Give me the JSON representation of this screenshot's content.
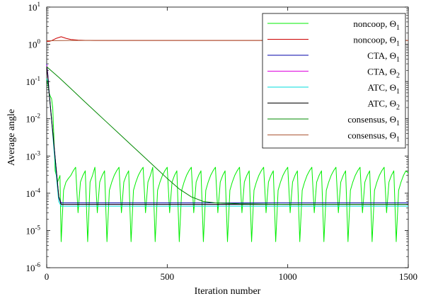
{
  "chart_data": {
    "type": "line",
    "xlabel": "Iteration number",
    "ylabel": "Average angle",
    "xlim": [
      0,
      1500
    ],
    "ylim": [
      1e-06,
      10
    ],
    "yscale": "log",
    "x_ticks": [
      "0",
      "500",
      "1000",
      "1500"
    ],
    "y_ticks": [
      {
        "base": "10",
        "exp": "-6",
        "value": 1e-06
      },
      {
        "base": "10",
        "exp": "-5",
        "value": 1e-05
      },
      {
        "base": "10",
        "exp": "-4",
        "value": 0.0001
      },
      {
        "base": "10",
        "exp": "-3",
        "value": 0.001
      },
      {
        "base": "10",
        "exp": "-2",
        "value": 0.01
      },
      {
        "base": "10",
        "exp": "-1",
        "value": 0.1
      },
      {
        "base": "10",
        "exp": "0",
        "value": 1
      },
      {
        "base": "10",
        "exp": "1",
        "value": 10
      }
    ],
    "grid": false,
    "legend_position": "top-right",
    "series": [
      {
        "name": "noncoop, Θ₁",
        "label": "noncoop, ",
        "sym": "Θ",
        "sub": "1",
        "color": "#00ee00",
        "x": [
          0,
          5,
          10,
          15,
          20,
          25,
          30,
          35,
          40,
          45,
          55,
          60,
          70,
          80,
          90,
          100,
          110,
          120,
          130,
          140,
          150,
          160,
          170,
          180,
          190,
          200,
          210,
          220,
          230,
          240,
          250,
          260,
          270,
          280,
          290,
          300,
          310,
          320,
          330,
          340,
          350,
          360,
          370,
          380,
          390,
          400,
          410,
          420,
          430,
          440,
          450,
          460,
          470,
          480,
          490,
          500,
          510,
          520,
          530,
          540,
          550,
          560,
          570,
          580,
          590,
          600,
          610,
          620,
          630,
          640,
          650,
          660,
          670,
          680,
          690,
          700,
          710,
          720,
          730,
          740,
          750,
          760,
          770,
          780,
          790,
          800,
          810,
          820,
          830,
          840,
          850,
          860,
          870,
          880,
          890,
          900,
          910,
          920,
          930,
          940,
          950,
          960,
          970,
          980,
          990,
          1000,
          1010,
          1020,
          1030,
          1040,
          1050,
          1060,
          1070,
          1080,
          1090,
          1100,
          1110,
          1120,
          1130,
          1140,
          1150,
          1160,
          1170,
          1180,
          1190,
          1200,
          1210,
          1220,
          1230,
          1240,
          1250,
          1260,
          1270,
          1280,
          1290,
          1300,
          1310,
          1320,
          1330,
          1340,
          1350,
          1360,
          1370,
          1380,
          1390,
          1400,
          1410,
          1420,
          1430,
          1440,
          1450,
          1460,
          1470,
          1480,
          1490,
          1500
        ],
        "y": [
          0.12,
          0.08,
          0.05,
          0.04,
          0.035,
          0.02,
          0.003,
          0.0004,
          0.0003,
          0.0002,
          0.0003,
          5e-06,
          0.00012,
          0.0002,
          0.00025,
          0.0003,
          0.0004,
          0.0005,
          3e-05,
          0.0002,
          0.0003,
          0.0004,
          5e-06,
          0.0002,
          0.0003,
          0.0005,
          3e-05,
          0.0002,
          0.0003,
          0.0004,
          5e-06,
          0.00012,
          0.0002,
          0.0003,
          0.0004,
          0.0005,
          3e-05,
          0.0002,
          0.0003,
          0.0004,
          5e-06,
          0.00012,
          0.0002,
          0.0003,
          0.0004,
          0.0005,
          3e-05,
          0.0002,
          0.0003,
          0.0005,
          5e-06,
          0.00012,
          0.0002,
          0.0003,
          0.0004,
          0.0005,
          3e-05,
          0.0002,
          0.0003,
          0.0004,
          5e-06,
          0.00012,
          0.0002,
          0.0003,
          0.0004,
          0.0005,
          3e-05,
          0.0002,
          0.0003,
          0.0004,
          5e-06,
          0.00012,
          0.0002,
          0.0003,
          0.0004,
          0.0005,
          3e-05,
          0.0002,
          0.0003,
          0.0004,
          5e-06,
          0.00012,
          0.0002,
          0.0003,
          0.0004,
          0.0005,
          3e-05,
          0.0002,
          0.0003,
          0.0004,
          5e-06,
          0.00012,
          0.0002,
          0.0003,
          0.0004,
          0.0005,
          3e-05,
          0.0002,
          0.0003,
          0.0004,
          5e-06,
          0.00012,
          0.0002,
          0.0003,
          0.0004,
          0.0005,
          3e-05,
          0.0002,
          0.0003,
          0.0004,
          5e-06,
          0.00012,
          0.0002,
          0.0003,
          0.0004,
          0.0005,
          3e-05,
          0.0002,
          0.0003,
          0.0004,
          5e-06,
          0.00012,
          0.0002,
          0.0003,
          0.0004,
          0.0005,
          3e-05,
          0.0002,
          0.0003,
          0.0004,
          5e-06,
          0.00012,
          0.0002,
          0.0003,
          0.0004,
          0.0005,
          3e-05,
          0.0002,
          0.0003,
          0.0004,
          5e-06,
          0.00012,
          0.0002,
          0.0003,
          0.0004,
          0.0005,
          3e-05,
          0.0002,
          0.0003,
          0.0004,
          5e-06,
          0.00012,
          0.0002,
          0.0003,
          0.0004,
          0.00035
        ]
      },
      {
        "name": "noncoop, Θ₁",
        "label": "noncoop, ",
        "sym": "Θ",
        "sub": "1",
        "color": "#cc0000",
        "x": [
          0,
          10,
          20,
          40,
          60,
          80,
          100,
          130,
          160,
          200,
          300,
          500,
          1000,
          1500
        ],
        "y": [
          1.2,
          1.2,
          1.25,
          1.45,
          1.6,
          1.45,
          1.35,
          1.3,
          1.28,
          1.27,
          1.27,
          1.27,
          1.27,
          1.27
        ]
      },
      {
        "name": "CTA, Θ₁",
        "label": "CTA, ",
        "sym": "Θ",
        "sub": "1",
        "color": "#0000aa",
        "x": [
          0,
          5,
          10,
          20,
          30,
          40,
          50,
          60,
          80,
          200,
          1500
        ],
        "y": [
          0.3,
          0.15,
          0.05,
          0.01,
          0.002,
          0.0004,
          8e-05,
          5.5e-05,
          5.5e-05,
          5.5e-05,
          5.5e-05
        ]
      },
      {
        "name": "CTA, Θ₂",
        "label": "CTA, ",
        "sym": "Θ",
        "sub": "2",
        "color": "#dd00dd",
        "x": [
          0,
          5,
          10,
          20,
          30,
          40,
          50,
          60,
          80,
          200,
          1500
        ],
        "y": [
          0.28,
          0.14,
          0.05,
          0.01,
          0.002,
          0.0004,
          8e-05,
          5e-05,
          5e-05,
          5e-05,
          5e-05
        ]
      },
      {
        "name": "ATC, Θ₁",
        "label": "ATC, ",
        "sym": "Θ",
        "sub": "1",
        "color": "#00dddd",
        "x": [
          0,
          5,
          10,
          20,
          30,
          40,
          50,
          60,
          80,
          200,
          1500
        ],
        "y": [
          0.12,
          0.1,
          0.05,
          0.01,
          0.0015,
          0.0003,
          6e-05,
          4.5e-05,
          4.5e-05,
          4.5e-05,
          4.5e-05
        ]
      },
      {
        "name": "ATC, Θ₂",
        "label": "ATC, ",
        "sym": "Θ",
        "sub": "2",
        "color": "#000000",
        "x": [
          0,
          5,
          10,
          20,
          30,
          40,
          50,
          60,
          80,
          200,
          1500
        ],
        "y": [
          0.25,
          0.13,
          0.05,
          0.01,
          0.002,
          0.0004,
          8e-05,
          5e-05,
          5e-05,
          5e-05,
          5e-05
        ]
      },
      {
        "name": "consensus, Θ₁",
        "label": "consensus, ",
        "sym": "Θ",
        "sub": "1",
        "color": "#008800",
        "x": [
          0,
          50,
          100,
          150,
          200,
          250,
          300,
          350,
          400,
          450,
          500,
          550,
          600,
          650,
          700,
          800,
          1000,
          1500
        ],
        "y": [
          0.25,
          0.13,
          0.065,
          0.032,
          0.016,
          0.008,
          0.004,
          0.002,
          0.001,
          0.0005,
          0.00025,
          0.00013,
          8e-05,
          6e-05,
          5.5e-05,
          5.2e-05,
          5e-05,
          5e-05
        ]
      },
      {
        "name": "consensus, Θ₁",
        "label": "consensus, ",
        "sym": "Θ",
        "sub": "1",
        "color": "#aa5533",
        "x": [
          0,
          100,
          300,
          500,
          1000,
          1500
        ],
        "y": [
          1.25,
          1.27,
          1.27,
          1.27,
          1.27,
          1.27
        ]
      }
    ]
  }
}
